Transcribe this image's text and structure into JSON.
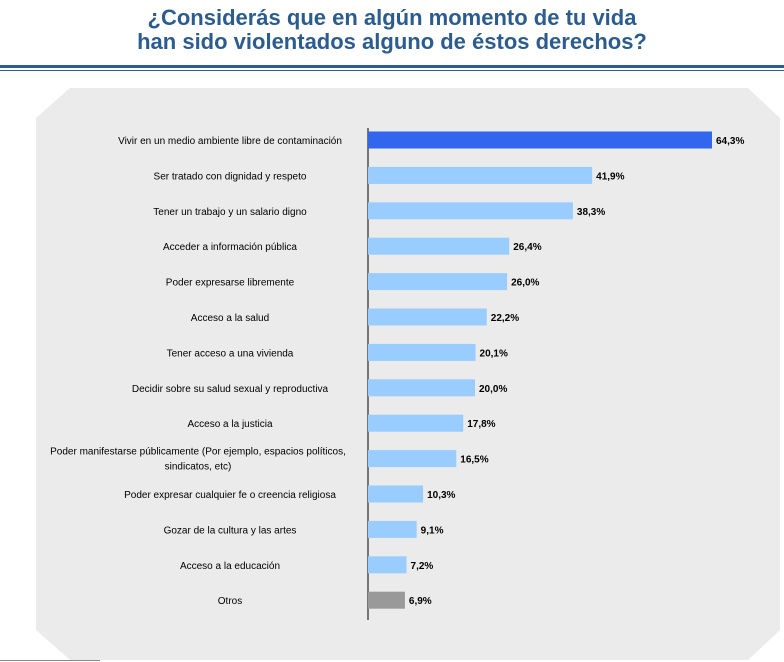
{
  "header": {
    "title_line1": "¿Considerás que en algún momento de tu vida",
    "title_line2": "han sido violentados alguno de éstos derechos?"
  },
  "colors": {
    "title": "#2c5c8e",
    "rule": "#2a5c8e",
    "panel": "#ebebeb",
    "highlight_bar": "#3366ee",
    "bar": "#99ccff",
    "other_bar": "#999999"
  },
  "chart_data": {
    "type": "bar",
    "orientation": "horizontal",
    "categories": [
      "Vivir en un medio ambiente libre de contaminación",
      "Ser tratado con dignidad y respeto",
      "Tener un trabajo y un salario digno",
      "Acceder a información pública",
      "Poder expresarse libremente",
      "Acceso a la salud",
      "Tener acceso a una vivienda",
      "Decidir sobre su salud sexual y reproductiva",
      "Acceso a la justicia",
      "Poder manifestarse públicamente (Por ejemplo, espacios políticos, sindicatos, etc)",
      "Poder expresar cualquier fe o creencia religiosa",
      "Gozar de la cultura y las artes",
      "Acceso a la educación",
      "Otros"
    ],
    "category_lines": [
      [
        "Vivir en un medio ambiente libre de contaminación"
      ],
      [
        "Ser tratado con dignidad y respeto"
      ],
      [
        "Tener un trabajo y un salario digno"
      ],
      [
        "Acceder a información pública"
      ],
      [
        "Poder expresarse libremente"
      ],
      [
        "Acceso a la salud"
      ],
      [
        "Tener acceso a una vivienda"
      ],
      [
        "Decidir sobre su salud sexual y reproductiva"
      ],
      [
        "Acceso a la justicia"
      ],
      [
        "Poder manifestarse públicamente (Por ejemplo, espacios políticos,",
        "sindicatos, etc)"
      ],
      [
        "Poder expresar cualquier fe o creencia religiosa"
      ],
      [
        "Gozar de la cultura y las artes"
      ],
      [
        "Acceso a la educación"
      ],
      [
        "Otros"
      ]
    ],
    "values": [
      64.3,
      41.9,
      38.3,
      26.4,
      26.0,
      22.2,
      20.1,
      20.0,
      17.8,
      16.5,
      10.3,
      9.1,
      7.2,
      6.9
    ],
    "value_labels": [
      "64,3%",
      "41,9%",
      "38,3%",
      "26,4%",
      "26,0%",
      "22,2%",
      "20,1%",
      "20,0%",
      "17,8%",
      "16,5%",
      "10,3%",
      "9,1%",
      "7,2%",
      "6,9%"
    ],
    "bar_styles": [
      "highlight",
      "normal",
      "normal",
      "normal",
      "normal",
      "normal",
      "normal",
      "normal",
      "normal",
      "normal",
      "normal",
      "normal",
      "normal",
      "other"
    ],
    "xlim": [
      0,
      64.3
    ],
    "grid": false,
    "legend": "none"
  }
}
